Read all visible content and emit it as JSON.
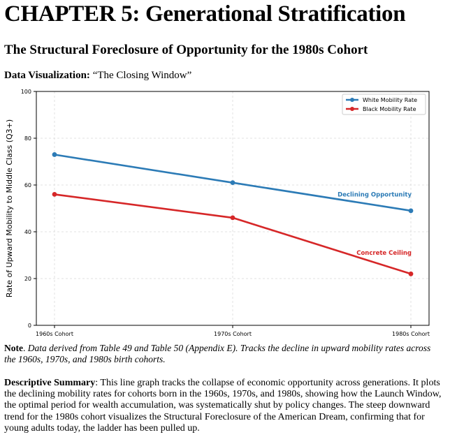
{
  "chapter_title": "CHAPTER 5: Generational Stratification",
  "subtitle": "The Structural Foreclosure of Opportunity for the 1980s Cohort",
  "viz_caption": {
    "label": "Data Visualization:",
    "text": "“The Closing Window”"
  },
  "chart_data": {
    "type": "line",
    "title": "",
    "categories": [
      "1960s Cohort",
      "1970s Cohort",
      "1980s Cohort"
    ],
    "series": [
      {
        "name": "White Mobility Rate",
        "values": [
          73,
          61,
          49
        ],
        "color": "#2c7bb6"
      },
      {
        "name": "Black Mobility Rate",
        "values": [
          56,
          46,
          22
        ],
        "color": "#d62728"
      }
    ],
    "xlabel": "",
    "ylabel": "Rate of Upward Mobility to Middle Class (Q3+)",
    "ylim": [
      0,
      100
    ],
    "yticks": [
      0,
      20,
      40,
      60,
      80,
      100
    ],
    "grid": true,
    "legend": "top-right",
    "annotations": [
      {
        "text": "Declining Opportunity",
        "x": "1980s Cohort",
        "y": 56,
        "color": "#2c7bb6"
      },
      {
        "text": "Concrete Ceiling",
        "x": "1980s Cohort",
        "y": 31,
        "color": "#d62728"
      }
    ]
  },
  "note": {
    "label": "Note",
    "text": "Data derived from Table 49 and Table 50 (Appendix E). Tracks the decline in upward mobility rates across the 1960s, 1970s, and 1980s birth cohorts."
  },
  "summary": {
    "label": "Descriptive Summary",
    "text": "This line graph tracks the collapse of economic opportunity across generations. It plots the declining mobility rates for cohorts born in the 1960s, 1970s, and 1980s, showing how the Launch Window, the optimal period for wealth accumulation, was systematically shut by policy changes. The steep downward trend for the 1980s cohort visualizes the Structural Foreclosure of the American Dream, confirming that for young adults today, the ladder has been pulled up."
  }
}
